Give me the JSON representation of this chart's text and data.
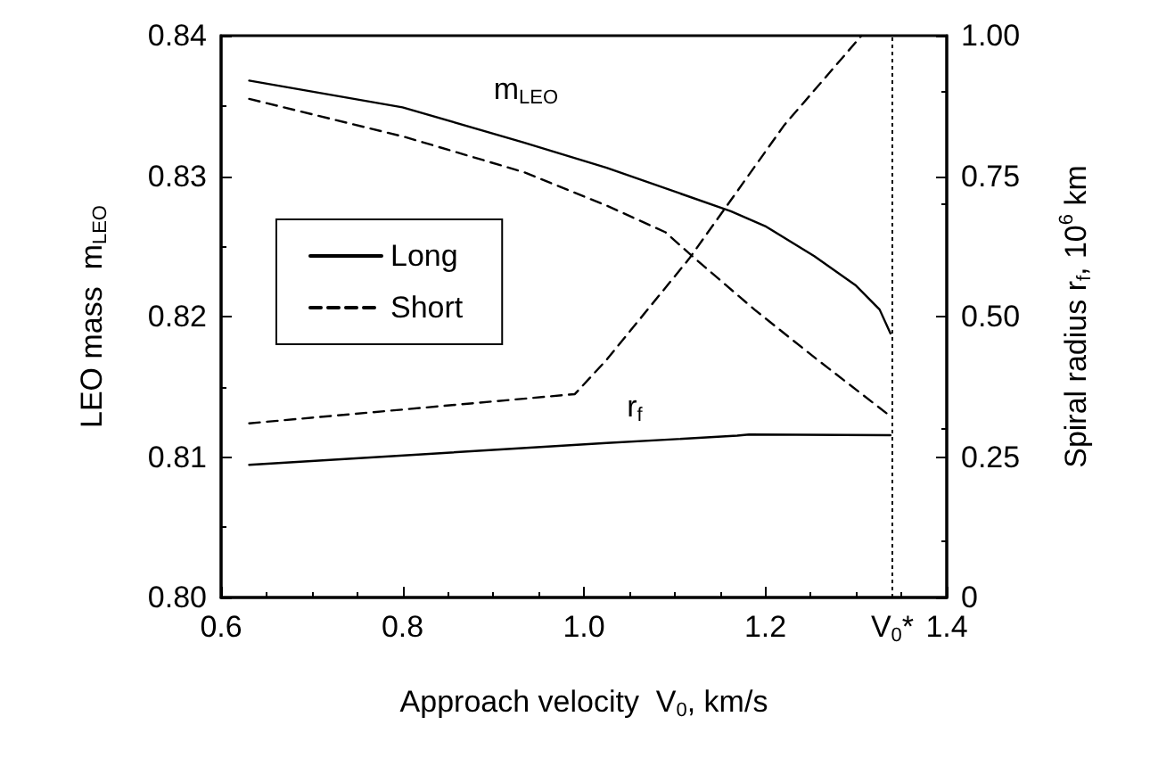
{
  "chart_data": {
    "type": "line",
    "xlabel": "Approach velocity  V$_{0}$, km/s",
    "ylabel": "LEO mass  m$_{LEO}$",
    "y2label": "Spiral radius r$_{f}$, 10$^{6}$ km",
    "xlim": [
      0.6,
      1.4
    ],
    "xticks": [
      0.6,
      0.8,
      {
        "value": 1.0,
        "label": "1.0"
      },
      1.2,
      1.4
    ],
    "ylim": [
      0.8,
      0.84
    ],
    "yticks": [
      {
        "value": 0.8,
        "label": "0.80"
      },
      {
        "value": 0.81,
        "label": "0.81"
      },
      {
        "value": 0.82,
        "label": "0.82"
      },
      {
        "value": 0.83,
        "label": "0.83"
      },
      {
        "value": 0.84,
        "label": "0.84"
      }
    ],
    "y2lim": [
      0,
      1
    ],
    "y2ticks": [
      0,
      {
        "value": 0.25,
        "label": "0.25"
      },
      {
        "value": 0.5,
        "label": "0.50"
      },
      {
        "value": 0.75,
        "label": "0.75"
      },
      {
        "value": 1,
        "label": "1.00"
      }
    ],
    "grid": false,
    "legend": "left",
    "marker": "none",
    "series": [
      {
        "name": "Long",
        "color": "#000000",
        "line_style": "solid",
        "x": [
          0.631,
          0.8,
          0.933,
          1.025,
          1.162,
          1.201,
          1.254,
          1.3,
          1.326,
          1.338
        ],
        "values": [
          0.8368,
          0.8349,
          0.8324,
          0.8306,
          0.8275,
          0.8264,
          0.8243,
          0.8222,
          0.8205,
          0.8188
        ]
      },
      {
        "name": "Short",
        "color": "#000000",
        "line_style": "dashed",
        "x": [
          0.631,
          0.802,
          0.933,
          1.025,
          1.09,
          1.123,
          1.188,
          1.254,
          1.338
        ],
        "values": [
          0.8355,
          0.8328,
          0.8303,
          0.8279,
          0.826,
          0.8241,
          0.8205,
          0.8171,
          0.8129
        ]
      },
      {
        "color": "#000000",
        "line_style": "solid",
        "axis": "y2",
        "x": [
          0.631,
          1.025,
          1.169,
          1.182,
          1.338
        ],
        "values": [
          0.236,
          0.275,
          0.288,
          0.29,
          0.289
        ]
      },
      {
        "color": "#000000",
        "line_style": "dashed",
        "axis": "y2",
        "x": [
          0.631,
          0.99,
          1.025,
          1.116,
          1.221,
          1.306
        ],
        "values": [
          0.31,
          0.362,
          0.423,
          0.603,
          0.841,
          1.0
        ]
      }
    ],
    "ref_lines": [
      {
        "axis": "x",
        "value": 1.338,
        "label": "V$_{0}$*",
        "line_style": "dotted",
        "color": "#000000"
      }
    ],
    "annotations": [
      "m$_{LEO}$",
      "r$_{f}$"
    ]
  }
}
